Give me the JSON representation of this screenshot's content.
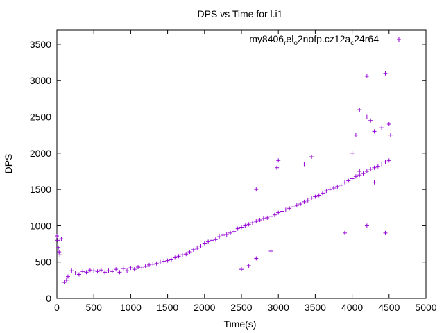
{
  "chart_data": {
    "type": "scatter",
    "title": "DPS vs Time for l.i1",
    "xlabel": "Time(s)",
    "ylabel": "DPS",
    "xlim": [
      0,
      5000
    ],
    "ylim": [
      0,
      3700
    ],
    "x_ticks": [
      0,
      500,
      1000,
      1500,
      2000,
      2500,
      3000,
      3500,
      4000,
      4500,
      5000
    ],
    "y_ticks": [
      0,
      500,
      1000,
      1500,
      2000,
      2500,
      3000,
      3500
    ],
    "grid": false,
    "legend_position": "top-right",
    "series": [
      {
        "name": "my8406",
        "name_sub1": "r",
        "name_mid1": "el",
        "name_sub2": "o",
        "name_mid2": "2nofp.cz12a",
        "name_sub3": "c",
        "name_end": "24r64",
        "color": "#9400d3",
        "marker": "+",
        "x": [
          0,
          10,
          20,
          30,
          40,
          60,
          100,
          130,
          150,
          200,
          250,
          300,
          350,
          400,
          450,
          500,
          550,
          600,
          650,
          700,
          750,
          800,
          850,
          900,
          950,
          1000,
          1050,
          1100,
          1150,
          1200,
          1250,
          1300,
          1350,
          1400,
          1450,
          1500,
          1550,
          1600,
          1650,
          1700,
          1750,
          1800,
          1850,
          1900,
          1950,
          2000,
          2050,
          2100,
          2150,
          2200,
          2250,
          2300,
          2350,
          2400,
          2450,
          2500,
          2550,
          2600,
          2650,
          2700,
          2750,
          2800,
          2850,
          2900,
          2950,
          3000,
          3050,
          3100,
          3150,
          3200,
          3250,
          3300,
          3350,
          3400,
          3450,
          3500,
          3550,
          3600,
          3650,
          3700,
          3750,
          3800,
          3850,
          3900,
          3950,
          4000,
          4050,
          4100,
          4150,
          4200,
          4250,
          4300,
          4350,
          4400,
          4450,
          4500,
          2500,
          2700,
          2980,
          3000,
          3350,
          3450,
          3900,
          4000,
          4050,
          4100,
          4200,
          4250,
          4300,
          4400,
          4500,
          4200,
          4450,
          4520,
          4200,
          4450,
          2700,
          2600,
          2900,
          4100,
          4300
        ],
        "y": [
          860,
          800,
          700,
          640,
          600,
          820,
          220,
          250,
          300,
          380,
          350,
          330,
          370,
          360,
          390,
          380,
          370,
          390,
          360,
          380,
          370,
          400,
          360,
          410,
          380,
          420,
          400,
          430,
          420,
          440,
          460,
          470,
          480,
          500,
          510,
          520,
          530,
          560,
          580,
          600,
          610,
          640,
          670,
          690,
          720,
          760,
          780,
          800,
          810,
          850,
          870,
          880,
          900,
          920,
          960,
          980,
          1000,
          1020,
          1040,
          1060,
          1080,
          1100,
          1110,
          1130,
          1150,
          1180,
          1200,
          1220,
          1240,
          1260,
          1280,
          1300,
          1330,
          1350,
          1380,
          1400,
          1420,
          1450,
          1480,
          1500,
          1520,
          1540,
          1560,
          1600,
          1620,
          1650,
          1680,
          1700,
          1720,
          1750,
          1780,
          1800,
          1820,
          1850,
          1880,
          1900,
          400,
          1500,
          1800,
          1900,
          1850,
          1950,
          900,
          2000,
          2250,
          2600,
          2500,
          2450,
          2300,
          2350,
          2400,
          3060,
          3100,
          2250,
          1000,
          900,
          550,
          450,
          650,
          1750,
          1600
        ]
      }
    ]
  }
}
